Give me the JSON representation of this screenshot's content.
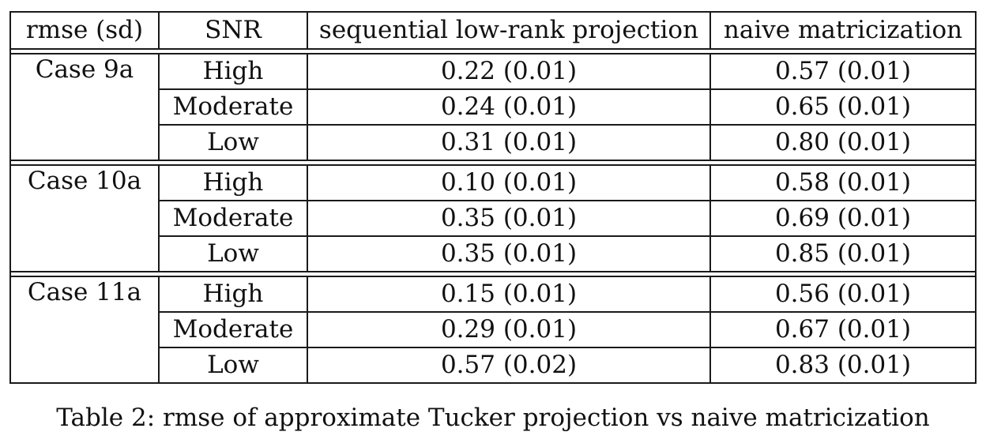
{
  "table": {
    "headers": [
      "rmse (sd)",
      "SNR",
      "sequential low-rank projection",
      "naive matricization"
    ],
    "groups": [
      {
        "case": "Case 9a",
        "rows": [
          {
            "snr": "High",
            "seq": "0.22 (0.01)",
            "naive": "0.57 (0.01)"
          },
          {
            "snr": "Moderate",
            "seq": "0.24 (0.01)",
            "naive": "0.65 (0.01)"
          },
          {
            "snr": "Low",
            "seq": "0.31 (0.01)",
            "naive": "0.80 (0.01)"
          }
        ]
      },
      {
        "case": "Case 10a",
        "rows": [
          {
            "snr": "High",
            "seq": "0.10 (0.01)",
            "naive": "0.58 (0.01)"
          },
          {
            "snr": "Moderate",
            "seq": "0.35 (0.01)",
            "naive": "0.69 (0.01)"
          },
          {
            "snr": "Low",
            "seq": "0.35 (0.01)",
            "naive": "0.85 (0.01)"
          }
        ]
      },
      {
        "case": "Case 11a",
        "rows": [
          {
            "snr": "High",
            "seq": "0.15 (0.01)",
            "naive": "0.56 (0.01)"
          },
          {
            "snr": "Moderate",
            "seq": "0.29 (0.01)",
            "naive": "0.67 (0.01)"
          },
          {
            "snr": "Low",
            "seq": "0.57 (0.02)",
            "naive": "0.83 (0.01)"
          }
        ]
      }
    ]
  },
  "caption": "Table 2: rmse of approximate Tucker projection vs naive matricization"
}
